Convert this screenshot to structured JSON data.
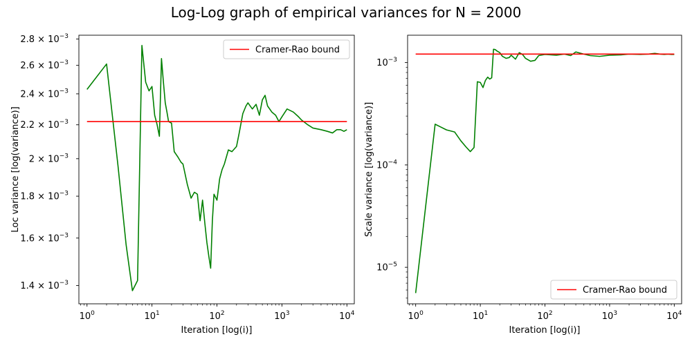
{
  "figure": {
    "title": "Log-Log graph of empirical variances for N = 2000"
  },
  "colors": {
    "series": "#008000",
    "bound": "#ff0000",
    "axes": "#000000",
    "background": "#ffffff"
  },
  "chart_data": [
    {
      "type": "line",
      "xscale": "log",
      "yscale": "log",
      "xlabel": "Iteration [log(i)]",
      "ylabel": "Loc variance [log(variance)]",
      "xlim": [
        0.75,
        13000
      ],
      "ylim": [
        0.00133,
        0.00283
      ],
      "grid": false,
      "legend": {
        "location": "upper right",
        "entries": [
          "Cramer-Rao bound"
        ]
      },
      "x_ticks": [
        {
          "value": 1,
          "mantissa": "10",
          "exp": "0"
        },
        {
          "value": 10,
          "mantissa": "10",
          "exp": "1"
        },
        {
          "value": 100,
          "mantissa": "10",
          "exp": "2"
        },
        {
          "value": 1000,
          "mantissa": "10",
          "exp": "3"
        },
        {
          "value": 10000,
          "mantissa": "10",
          "exp": "4"
        }
      ],
      "y_ticks": [
        {
          "value": 0.0014,
          "mantissa": "1.4 × 10",
          "exp": "−3"
        },
        {
          "value": 0.0016,
          "mantissa": "1.6 × 10",
          "exp": "−3"
        },
        {
          "value": 0.0018,
          "mantissa": "1.8 × 10",
          "exp": "−3"
        },
        {
          "value": 0.002,
          "mantissa": "2 × 10",
          "exp": "−3"
        },
        {
          "value": 0.0022,
          "mantissa": "2.2 × 10",
          "exp": "−3"
        },
        {
          "value": 0.0024,
          "mantissa": "2.4 × 10",
          "exp": "−3"
        },
        {
          "value": 0.0026,
          "mantissa": "2.6 × 10",
          "exp": "−3"
        },
        {
          "value": 0.0028,
          "mantissa": "2.8 × 10",
          "exp": "−3"
        }
      ],
      "series": [
        {
          "color": "#008000",
          "x": [
            1,
            2,
            3,
            4,
            5,
            6,
            7,
            8,
            9,
            10,
            11,
            12,
            13,
            14,
            15,
            16,
            17,
            18,
            20,
            22,
            25,
            28,
            30,
            35,
            40,
            45,
            50,
            55,
            60,
            65,
            70,
            75,
            80,
            85,
            90,
            100,
            110,
            120,
            130,
            150,
            170,
            200,
            220,
            250,
            280,
            300,
            350,
            400,
            450,
            500,
            550,
            600,
            700,
            800,
            900,
            1000,
            1200,
            1500,
            1800,
            2000,
            2500,
            3000,
            4000,
            5000,
            6000,
            7000,
            8000,
            9000,
            10000
          ],
          "y": [
            0.00243,
            0.00261,
            0.00196,
            0.00157,
            0.00138,
            0.00142,
            0.00275,
            0.00248,
            0.00242,
            0.00245,
            0.00226,
            0.0022,
            0.00213,
            0.00265,
            0.00248,
            0.00234,
            0.00228,
            0.00222,
            0.00221,
            0.00204,
            0.00201,
            0.00198,
            0.00197,
            0.00186,
            0.00179,
            0.00182,
            0.00181,
            0.00168,
            0.00178,
            0.00167,
            0.00158,
            0.00152,
            0.00147,
            0.00168,
            0.00181,
            0.00178,
            0.00189,
            0.00194,
            0.00197,
            0.00205,
            0.00204,
            0.00207,
            0.00215,
            0.00227,
            0.00232,
            0.00234,
            0.0023,
            0.00233,
            0.00226,
            0.00236,
            0.00239,
            0.00232,
            0.00228,
            0.00226,
            0.00222,
            0.00225,
            0.0023,
            0.00228,
            0.00225,
            0.00223,
            0.0022,
            0.00218,
            0.00217,
            0.00216,
            0.00215,
            0.00217,
            0.00217,
            0.00216,
            0.00217
          ]
        },
        {
          "name": "Cramer-Rao bound",
          "color": "#ff0000",
          "x": [
            1,
            10000
          ],
          "y": [
            0.00222,
            0.00222
          ]
        }
      ]
    },
    {
      "type": "line",
      "xscale": "log",
      "yscale": "log",
      "xlabel": "Iteration [log(i)]",
      "ylabel": "Scale variance [log(variance)]",
      "xlim": [
        0.75,
        13000
      ],
      "ylim": [
        4.4e-06,
        0.00185
      ],
      "grid": false,
      "legend": {
        "location": "lower right",
        "entries": [
          "Cramer-Rao bound"
        ]
      },
      "x_ticks": [
        {
          "value": 1,
          "mantissa": "10",
          "exp": "0"
        },
        {
          "value": 10,
          "mantissa": "10",
          "exp": "1"
        },
        {
          "value": 100,
          "mantissa": "10",
          "exp": "2"
        },
        {
          "value": 1000,
          "mantissa": "10",
          "exp": "3"
        },
        {
          "value": 10000,
          "mantissa": "10",
          "exp": "4"
        }
      ],
      "y_ticks": [
        {
          "value": 1e-05,
          "mantissa": "10",
          "exp": "−5"
        },
        {
          "value": 0.0001,
          "mantissa": "10",
          "exp": "−4"
        },
        {
          "value": 0.001,
          "mantissa": "10",
          "exp": "−3"
        }
      ],
      "series": [
        {
          "color": "#008000",
          "x": [
            1,
            2,
            3,
            4,
            5,
            6,
            7,
            8,
            9,
            10,
            11,
            12,
            13,
            14,
            15,
            16,
            17,
            18,
            20,
            22,
            25,
            28,
            30,
            35,
            40,
            45,
            50,
            60,
            70,
            80,
            100,
            150,
            200,
            250,
            300,
            400,
            500,
            700,
            1000,
            1500,
            2000,
            3000,
            4000,
            5000,
            6000,
            7000,
            8000,
            9000,
            10000
          ],
          "y": [
            5.6e-06,
            0.00025,
            0.00022,
            0.00021,
            0.000172,
            0.00015,
            0.000135,
            0.000148,
            0.00065,
            0.00064,
            0.00057,
            0.00067,
            0.00072,
            0.00069,
            0.00071,
            0.00135,
            0.00134,
            0.0013,
            0.00125,
            0.00115,
            0.0011,
            0.00112,
            0.00118,
            0.00108,
            0.00125,
            0.0012,
            0.0011,
            0.00103,
            0.00105,
            0.00117,
            0.0012,
            0.00118,
            0.00121,
            0.00117,
            0.00127,
            0.00121,
            0.00117,
            0.00115,
            0.00118,
            0.00119,
            0.00121,
            0.0012,
            0.00121,
            0.00123,
            0.00121,
            0.0012,
            0.00121,
            0.0012,
            0.0012
          ]
        },
        {
          "name": "Cramer-Rao bound",
          "color": "#ff0000",
          "x": [
            1,
            10000
          ],
          "y": [
            0.00121,
            0.00121
          ]
        }
      ]
    }
  ]
}
